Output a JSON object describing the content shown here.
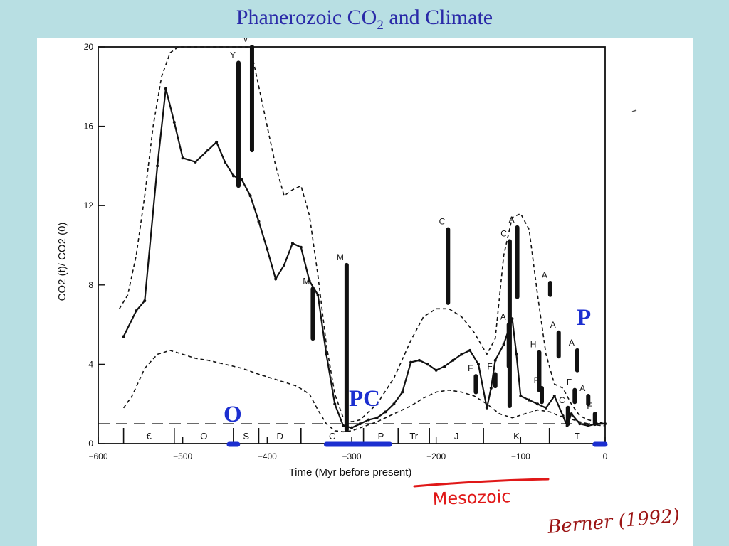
{
  "slide": {
    "title_main": "Phanerozoic CO",
    "title_sub": "2",
    "title_tail": " and Climate"
  },
  "chart_data": {
    "type": "line",
    "title": "",
    "xlabel": "Time (Myr before present)",
    "ylabel": "CO2 (t)/ CO2 (0)",
    "xlim": [
      -600,
      0
    ],
    "ylim": [
      0,
      20
    ],
    "x_ticks": [
      -600,
      -500,
      -400,
      -300,
      -200,
      -100,
      0
    ],
    "x_tick_labels": [
      "−600",
      "−500",
      "−400",
      "−300",
      "−200",
      "−100",
      "0"
    ],
    "y_ticks": [
      0,
      4,
      8,
      12,
      16,
      20
    ],
    "y_tick_labels": [
      "0",
      "4",
      "8",
      "12",
      "16",
      "20"
    ],
    "grid": false,
    "series": [
      {
        "style": "solid",
        "x": [
          -570,
          -555,
          -545,
          -530,
          -520,
          -510,
          -500,
          -485,
          -470,
          -460,
          -450,
          -440,
          -430,
          -420,
          -410,
          -400,
          -390,
          -380,
          -370,
          -360,
          -350,
          -340,
          -330,
          -320,
          -310,
          -300,
          -290,
          -280,
          -270,
          -260,
          -250,
          -240,
          -230,
          -220,
          -210,
          -200,
          -190,
          -180,
          -170,
          -160,
          -150,
          -140,
          -135,
          -130,
          -120,
          -110,
          -105,
          -100,
          -90,
          -80,
          -70,
          -60,
          -50,
          -45,
          -40,
          -30,
          -20,
          -10,
          0
        ],
        "y": [
          5.4,
          6.7,
          7.2,
          14.0,
          17.9,
          16.2,
          14.4,
          14.2,
          14.8,
          15.2,
          14.2,
          13.5,
          13.3,
          12.5,
          11.2,
          9.8,
          8.3,
          9.0,
          10.1,
          9.9,
          8.2,
          7.5,
          4.5,
          2.0,
          0.9,
          0.8,
          1.0,
          1.2,
          1.3,
          1.6,
          2.0,
          2.6,
          4.1,
          4.2,
          4.0,
          3.7,
          3.9,
          4.2,
          4.5,
          4.7,
          4.0,
          1.8,
          2.8,
          4.2,
          5.0,
          6.3,
          4.5,
          2.4,
          2.2,
          2.0,
          1.8,
          2.4,
          1.4,
          0.9,
          1.5,
          1.0,
          0.9,
          1.0,
          1.0
        ]
      },
      {
        "style": "dashed-upper",
        "x": [
          -575,
          -565,
          -555,
          -545,
          -535,
          -525,
          -515,
          -505,
          -495,
          -480,
          -470,
          -460,
          -450,
          -440,
          -430,
          -420,
          -410,
          -400,
          -390,
          -380,
          -370,
          -360,
          -350,
          -340,
          -330,
          -320,
          -310,
          -300,
          -290,
          -270,
          -250,
          -230,
          -215,
          -200,
          -185,
          -170,
          -155,
          -140,
          -130,
          -120,
          -110,
          -100,
          -90,
          -80,
          -70,
          -60,
          -50,
          -40,
          -30,
          -20,
          -10,
          0
        ],
        "y": [
          6.8,
          7.5,
          9.5,
          12.5,
          16.0,
          18.5,
          19.7,
          20.0,
          20.0,
          20.0,
          20.0,
          20.0,
          20.0,
          20.0,
          20.0,
          20.0,
          18.0,
          16.0,
          14.0,
          12.5,
          12.8,
          13.0,
          11.5,
          8.5,
          5.0,
          2.5,
          1.3,
          1.1,
          1.2,
          2.0,
          3.3,
          5.2,
          6.4,
          6.8,
          6.8,
          6.4,
          5.6,
          4.5,
          5.3,
          9.5,
          11.4,
          11.6,
          10.8,
          7.5,
          4.5,
          3.0,
          2.8,
          2.0,
          1.4,
          1.2,
          1.1,
          1.0
        ]
      },
      {
        "style": "dashed-lower",
        "x": [
          -570,
          -560,
          -545,
          -530,
          -515,
          -500,
          -485,
          -470,
          -450,
          -430,
          -410,
          -395,
          -380,
          -365,
          -350,
          -340,
          -330,
          -320,
          -310,
          -300,
          -290,
          -270,
          -250,
          -230,
          -215,
          -200,
          -185,
          -170,
          -155,
          -140,
          -125,
          -110,
          -95,
          -80,
          -65,
          -55,
          -45,
          -30,
          -15,
          0
        ],
        "y": [
          1.8,
          2.4,
          3.8,
          4.5,
          4.7,
          4.5,
          4.3,
          4.2,
          4.0,
          3.8,
          3.5,
          3.3,
          3.1,
          2.9,
          2.5,
          1.7,
          1.0,
          0.65,
          0.6,
          0.65,
          0.8,
          1.1,
          1.5,
          1.9,
          2.3,
          2.6,
          2.7,
          2.6,
          2.4,
          2.0,
          1.5,
          1.3,
          1.5,
          1.7,
          1.6,
          1.4,
          1.3,
          1.1,
          0.95,
          0.9
        ]
      },
      {
        "style": "long-dash-reference",
        "x": [
          -600,
          0
        ],
        "y": [
          1.0,
          1.0
        ]
      }
    ],
    "climate_bars": [
      {
        "label": "Y",
        "x": -434,
        "y0": 13.0,
        "y1": 19.2
      },
      {
        "label": "M",
        "x": -418,
        "y0": 14.8,
        "y1": 20.0
      },
      {
        "label": "M",
        "x": -346,
        "y0": 5.3,
        "y1": 7.8
      },
      {
        "label": "M",
        "x": -306,
        "y0": 0.7,
        "y1": 9.0
      },
      {
        "label": "C",
        "x": -186,
        "y0": 7.1,
        "y1": 10.8
      },
      {
        "label": "F",
        "x": -153,
        "y0": 2.6,
        "y1": 3.4
      },
      {
        "label": "F",
        "x": -130,
        "y0": 2.9,
        "y1": 3.5
      },
      {
        "label": "C",
        "x": -113,
        "y0": 1.9,
        "y1": 10.2
      },
      {
        "label": "A",
        "x": -104,
        "y0": 7.4,
        "y1": 10.9
      },
      {
        "label": "A",
        "x": -114,
        "y0": 3.9,
        "y1": 6.0
      },
      {
        "label": "A",
        "x": -65,
        "y0": 7.5,
        "y1": 8.1
      },
      {
        "label": "H",
        "x": -78,
        "y0": 2.7,
        "y1": 4.6
      },
      {
        "label": "F",
        "x": -75,
        "y0": 2.1,
        "y1": 2.8
      },
      {
        "label": "A",
        "x": -55,
        "y0": 4.4,
        "y1": 5.6
      },
      {
        "label": "A",
        "x": -33,
        "y0": 3.7,
        "y1": 4.7
      },
      {
        "label": "F",
        "x": -36,
        "y0": 2.1,
        "y1": 2.7
      },
      {
        "label": "C",
        "x": -44,
        "y0": 1.0,
        "y1": 1.8
      },
      {
        "label": "A",
        "x": -20,
        "y0": 2.0,
        "y1": 2.4
      },
      {
        "label": "F",
        "x": -12,
        "y0": 1.0,
        "y1": 1.5
      }
    ],
    "periods": [
      "€",
      "O",
      "S",
      "D",
      "C",
      "P",
      "Tr",
      "J",
      "K",
      "T"
    ],
    "annotations": {
      "glaciations": [
        "O",
        "PC",
        "P"
      ],
      "era_label": "Mesozoic",
      "citation": "Berner (1992)"
    }
  }
}
